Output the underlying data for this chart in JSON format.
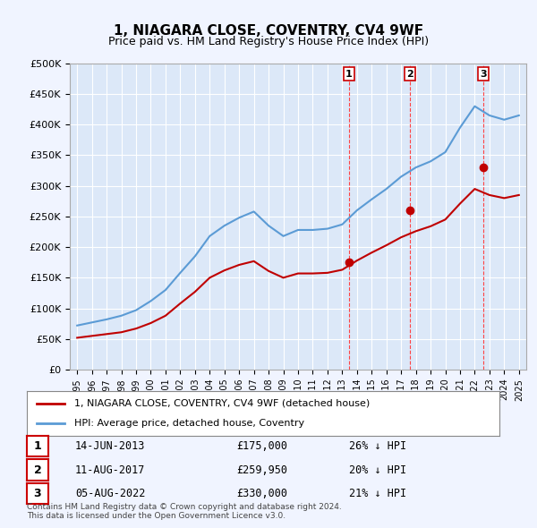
{
  "title": "1, NIAGARA CLOSE, COVENTRY, CV4 9WF",
  "subtitle": "Price paid vs. HM Land Registry's House Price Index (HPI)",
  "xlabel": "",
  "ylabel": "",
  "ylim": [
    0,
    500000
  ],
  "yticks": [
    0,
    50000,
    100000,
    150000,
    200000,
    250000,
    300000,
    350000,
    400000,
    450000,
    500000
  ],
  "ytick_labels": [
    "£0",
    "£50K",
    "£100K",
    "£150K",
    "£200K",
    "£250K",
    "£300K",
    "£350K",
    "£400K",
    "£450K",
    "£500K"
  ],
  "background_color": "#f0f4ff",
  "plot_bg_color": "#dce8f8",
  "grid_color": "#ffffff",
  "hpi_color": "#5b9bd5",
  "price_color": "#c00000",
  "marker_color": "#c00000",
  "vline_color": "#ff4444",
  "sale_dates": [
    "2013-06-14",
    "2017-08-11",
    "2022-08-05"
  ],
  "sale_prices": [
    175000,
    259950,
    330000
  ],
  "sale_labels": [
    "1",
    "2",
    "3"
  ],
  "sale_date_strs": [
    "14-JUN-2013",
    "11-AUG-2017",
    "05-AUG-2022"
  ],
  "sale_price_strs": [
    "£175,000",
    "£259,950",
    "£330,000"
  ],
  "sale_hpi_strs": [
    "26% ↓ HPI",
    "20% ↓ HPI",
    "21% ↓ HPI"
  ],
  "legend_label_price": "1, NIAGARA CLOSE, COVENTRY, CV4 9WF (detached house)",
  "legend_label_hpi": "HPI: Average price, detached house, Coventry",
  "footer": "Contains HM Land Registry data © Crown copyright and database right 2024.\nThis data is licensed under the Open Government Licence v3.0.",
  "hpi_years": [
    1995,
    1996,
    1997,
    1998,
    1999,
    2000,
    2001,
    2002,
    2003,
    2004,
    2005,
    2006,
    2007,
    2008,
    2009,
    2010,
    2011,
    2012,
    2013,
    2014,
    2015,
    2016,
    2017,
    2018,
    2019,
    2020,
    2021,
    2022,
    2023,
    2024,
    2025
  ],
  "hpi_values": [
    72000,
    77000,
    82000,
    88000,
    97000,
    112000,
    130000,
    158000,
    185000,
    218000,
    235000,
    248000,
    258000,
    235000,
    218000,
    228000,
    228000,
    230000,
    237000,
    260000,
    278000,
    295000,
    315000,
    330000,
    340000,
    355000,
    395000,
    430000,
    415000,
    408000,
    415000
  ],
  "price_years": [
    1995,
    1996,
    1997,
    1998,
    1999,
    2000,
    2001,
    2002,
    2003,
    2004,
    2005,
    2006,
    2007,
    2008,
    2009,
    2010,
    2011,
    2012,
    2013,
    2014,
    2015,
    2016,
    2017,
    2018,
    2019,
    2020,
    2021,
    2022,
    2023,
    2024,
    2025
  ],
  "price_values": [
    52000,
    55000,
    58000,
    61000,
    67000,
    76000,
    88000,
    108000,
    127000,
    150000,
    162000,
    171000,
    177000,
    161000,
    150000,
    157000,
    157000,
    158000,
    163000,
    178000,
    191000,
    203000,
    216000,
    226000,
    234000,
    245000,
    271000,
    295000,
    285000,
    280000,
    285000
  ]
}
